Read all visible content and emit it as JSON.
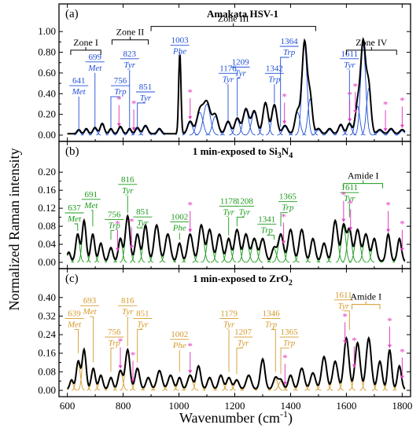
{
  "figure": {
    "ylabel": "Normalized Raman intensity",
    "xlabel": "Wavenumber (cm",
    "xlabel_sup": "-1",
    "xlabel_close": ")"
  },
  "chart_data": [
    {
      "type": "line",
      "panel_label": "(a)",
      "title": "Amakata HSV-1",
      "title_sub": "",
      "title_tail": "",
      "color": "#1f4fd8",
      "xlim": [
        570,
        1830
      ],
      "ylim": [
        0,
        1.1
      ],
      "x_ticks": [
        600,
        800,
        1000,
        1200,
        1400,
        1600,
        1800
      ],
      "y_ticks": [
        0.0,
        0.2,
        0.4,
        0.6,
        0.8,
        1.0
      ],
      "y_tick_labels": [
        "0.00",
        "0.20",
        "0.40",
        "0.60",
        "0.80",
        "1.00"
      ],
      "peaks": [
        {
          "x": 641,
          "y": 0.04,
          "w": 6
        },
        {
          "x": 668,
          "y": 0.05,
          "w": 6
        },
        {
          "x": 699,
          "y": 0.06,
          "w": 7
        },
        {
          "x": 725,
          "y": 0.1,
          "w": 7
        },
        {
          "x": 756,
          "y": 0.05,
          "w": 6
        },
        {
          "x": 790,
          "y": 0.07,
          "w": 7
        },
        {
          "x": 823,
          "y": 0.05,
          "w": 6
        },
        {
          "x": 851,
          "y": 0.06,
          "w": 7
        },
        {
          "x": 880,
          "y": 0.08,
          "w": 8
        },
        {
          "x": 930,
          "y": 0.05,
          "w": 7
        },
        {
          "x": 1003,
          "y": 0.78,
          "w": 4
        },
        {
          "x": 1040,
          "y": 0.12,
          "w": 9
        },
        {
          "x": 1075,
          "y": 0.22,
          "w": 11
        },
        {
          "x": 1100,
          "y": 0.3,
          "w": 12
        },
        {
          "x": 1130,
          "y": 0.18,
          "w": 10
        },
        {
          "x": 1176,
          "y": 0.12,
          "w": 9
        },
        {
          "x": 1209,
          "y": 0.15,
          "w": 9
        },
        {
          "x": 1240,
          "y": 0.24,
          "w": 10
        },
        {
          "x": 1270,
          "y": 0.22,
          "w": 10
        },
        {
          "x": 1310,
          "y": 0.3,
          "w": 9
        },
        {
          "x": 1342,
          "y": 0.28,
          "w": 9
        },
        {
          "x": 1380,
          "y": 0.08,
          "w": 9
        },
        {
          "x": 1425,
          "y": 0.22,
          "w": 9
        },
        {
          "x": 1450,
          "y": 0.88,
          "w": 9
        },
        {
          "x": 1470,
          "y": 0.35,
          "w": 8
        },
        {
          "x": 1500,
          "y": 0.05,
          "w": 8
        },
        {
          "x": 1540,
          "y": 0.05,
          "w": 8
        },
        {
          "x": 1580,
          "y": 0.09,
          "w": 8
        },
        {
          "x": 1611,
          "y": 0.1,
          "w": 8
        },
        {
          "x": 1640,
          "y": 0.28,
          "w": 8
        },
        {
          "x": 1660,
          "y": 0.88,
          "w": 9
        },
        {
          "x": 1680,
          "y": 0.45,
          "w": 8
        },
        {
          "x": 1720,
          "y": 0.04,
          "w": 9
        },
        {
          "x": 1760,
          "y": 0.05,
          "w": 8
        },
        {
          "x": 1800,
          "y": 0.04,
          "w": 8
        }
      ],
      "annotations": [
        {
          "text": "641",
          "sub": "Met",
          "x": 641,
          "y": 0.5,
          "lx": 641,
          "ly": 0.05
        },
        {
          "text": "699",
          "sub": "Met",
          "x": 699,
          "y": 0.73,
          "lx": 699,
          "ly": 0.08
        },
        {
          "text": "823",
          "sub": "Tyr",
          "x": 823,
          "y": 0.76,
          "lx": 823,
          "ly": 0.07
        },
        {
          "text": "756",
          "sub": "Trp",
          "x": 790,
          "y": 0.5,
          "lx": 756,
          "ly": 0.07
        },
        {
          "text": "851",
          "sub": "Tyr",
          "x": 880,
          "y": 0.44,
          "lx": 851,
          "ly": 0.07
        },
        {
          "text": "1003",
          "sub": "Phe",
          "x": 1003,
          "y": 0.89,
          "lx": 1003,
          "ly": 0.8
        },
        {
          "text": "1176",
          "sub": "Tyr",
          "x": 1176,
          "y": 0.62,
          "lx": 1176,
          "ly": 0.14
        },
        {
          "text": "1209",
          "sub": "Tyr",
          "x": 1220,
          "y": 0.68,
          "lx": 1209,
          "ly": 0.18
        },
        {
          "text": "1342",
          "sub": "Trp",
          "x": 1342,
          "y": 0.62,
          "lx": 1342,
          "ly": 0.31
        },
        {
          "text": "1364",
          "sub": "Trp",
          "x": 1395,
          "y": 0.88,
          "lx": 1364,
          "ly": 0.08
        },
        {
          "text": "1611",
          "sub": "Tyr",
          "x": 1611,
          "y": 0.76,
          "lx": 1611,
          "ly": 0.12
        }
      ],
      "asterisks": [
        785,
        838,
        1040,
        1378,
        1612,
        1632,
        1740,
        1800
      ],
      "zones": [
        {
          "label": "Zone I",
          "x1": 612,
          "x2": 720,
          "y": 0.82
        },
        {
          "label": "Zone II",
          "x1": 760,
          "x2": 890,
          "y": 0.92
        },
        {
          "label": "Zone III",
          "x1": 900,
          "x2": 1490,
          "y": 1.05
        },
        {
          "label": "Zone IV",
          "x1": 1600,
          "x2": 1780,
          "y": 0.82
        }
      ]
    },
    {
      "type": "line",
      "panel_label": "(b)",
      "title": "1 min-exposed to Si",
      "title_sub": "3",
      "title_tail": "N",
      "title_sub2": "4",
      "color": "#1a9a1a",
      "xlim": [
        570,
        1830
      ],
      "ylim": [
        0,
        0.23
      ],
      "x_ticks": [
        600,
        800,
        1000,
        1200,
        1400,
        1600,
        1800
      ],
      "y_ticks": [
        0.0,
        0.04,
        0.08,
        0.12,
        0.16,
        0.2
      ],
      "y_tick_labels": [
        "0.00",
        "0.04",
        "0.08",
        "0.12",
        "0.16",
        "0.20"
      ],
      "peaks": [
        {
          "x": 605,
          "y": 0.02,
          "w": 6
        },
        {
          "x": 637,
          "y": 0.06,
          "w": 7
        },
        {
          "x": 660,
          "y": 0.09,
          "w": 7
        },
        {
          "x": 691,
          "y": 0.06,
          "w": 7
        },
        {
          "x": 720,
          "y": 0.04,
          "w": 7
        },
        {
          "x": 756,
          "y": 0.03,
          "w": 7
        },
        {
          "x": 790,
          "y": 0.05,
          "w": 7
        },
        {
          "x": 816,
          "y": 0.1,
          "w": 8
        },
        {
          "x": 851,
          "y": 0.06,
          "w": 8
        },
        {
          "x": 880,
          "y": 0.08,
          "w": 8
        },
        {
          "x": 920,
          "y": 0.08,
          "w": 9
        },
        {
          "x": 960,
          "y": 0.06,
          "w": 9
        },
        {
          "x": 1002,
          "y": 0.04,
          "w": 7
        },
        {
          "x": 1040,
          "y": 0.06,
          "w": 9
        },
        {
          "x": 1080,
          "y": 0.08,
          "w": 9
        },
        {
          "x": 1110,
          "y": 0.07,
          "w": 9
        },
        {
          "x": 1145,
          "y": 0.06,
          "w": 9
        },
        {
          "x": 1178,
          "y": 0.05,
          "w": 8
        },
        {
          "x": 1208,
          "y": 0.07,
          "w": 9
        },
        {
          "x": 1240,
          "y": 0.06,
          "w": 9
        },
        {
          "x": 1270,
          "y": 0.05,
          "w": 9
        },
        {
          "x": 1300,
          "y": 0.05,
          "w": 9
        },
        {
          "x": 1341,
          "y": 0.03,
          "w": 8
        },
        {
          "x": 1365,
          "y": 0.06,
          "w": 9
        },
        {
          "x": 1400,
          "y": 0.07,
          "w": 9
        },
        {
          "x": 1440,
          "y": 0.07,
          "w": 9
        },
        {
          "x": 1480,
          "y": 0.05,
          "w": 8
        },
        {
          "x": 1520,
          "y": 0.04,
          "w": 8
        },
        {
          "x": 1560,
          "y": 0.09,
          "w": 9
        },
        {
          "x": 1590,
          "y": 0.08,
          "w": 8
        },
        {
          "x": 1611,
          "y": 0.07,
          "w": 8
        },
        {
          "x": 1640,
          "y": 0.07,
          "w": 9
        },
        {
          "x": 1670,
          "y": 0.06,
          "w": 9
        },
        {
          "x": 1700,
          "y": 0.05,
          "w": 8
        },
        {
          "x": 1750,
          "y": 0.06,
          "w": 7
        },
        {
          "x": 1790,
          "y": 0.05,
          "w": 7
        }
      ],
      "annotations": [
        {
          "text": "637",
          "sub": "Met",
          "x": 625,
          "y": 0.115,
          "lx": 637,
          "ly": 0.07
        },
        {
          "text": "691",
          "sub": "Met",
          "x": 685,
          "y": 0.145,
          "lx": 691,
          "ly": 0.08
        },
        {
          "text": "816",
          "sub": "Tyr",
          "x": 816,
          "y": 0.178,
          "lx": 816,
          "ly": 0.11
        },
        {
          "text": "756",
          "sub": "Trp",
          "x": 768,
          "y": 0.1,
          "lx": 756,
          "ly": 0.05
        },
        {
          "text": "851",
          "sub": "Tyr",
          "x": 870,
          "y": 0.106,
          "lx": 851,
          "ly": 0.08
        },
        {
          "text": "1002",
          "sub": "Phe",
          "x": 1002,
          "y": 0.095,
          "lx": 1002,
          "ly": 0.05
        },
        {
          "text": "1178",
          "sub": "Tyr",
          "x": 1178,
          "y": 0.13,
          "lx": 1178,
          "ly": 0.06
        },
        {
          "text": "1208",
          "sub": "Tyr",
          "x": 1235,
          "y": 0.13,
          "lx": 1208,
          "ly": 0.08
        },
        {
          "text": "1341",
          "sub": "Trp",
          "x": 1315,
          "y": 0.09,
          "lx": 1341,
          "ly": 0.05
        },
        {
          "text": "1365",
          "sub": "Trp",
          "x": 1390,
          "y": 0.14,
          "lx": 1365,
          "ly": 0.08
        },
        {
          "text": "1611",
          "sub": "Tyr",
          "x": 1611,
          "y": 0.16,
          "lx": 1611,
          "ly": 0.1
        }
      ],
      "asterisks": [
        780,
        830,
        1040,
        1375,
        1590,
        1615,
        1750,
        1800
      ],
      "zones": [
        {
          "label": "Amide I",
          "x1": 1590,
          "x2": 1730,
          "y": 0.175
        }
      ]
    },
    {
      "type": "line",
      "panel_label": "(c)",
      "title": "1 min-exposed to ZrO",
      "title_sub": "2",
      "title_tail": "",
      "color": "#d49a2a",
      "xlim": [
        570,
        1830
      ],
      "ylim": [
        0,
        0.45
      ],
      "x_ticks": [
        600,
        800,
        1000,
        1200,
        1400,
        1600,
        1800
      ],
      "y_ticks": [
        0.0,
        0.08,
        0.16,
        0.24,
        0.32,
        0.4
      ],
      "y_tick_labels": [
        "0.00",
        "0.08",
        "0.16",
        "0.24",
        "0.32",
        "0.40"
      ],
      "peaks": [
        {
          "x": 615,
          "y": 0.04,
          "w": 6
        },
        {
          "x": 639,
          "y": 0.12,
          "w": 7
        },
        {
          "x": 660,
          "y": 0.17,
          "w": 7
        },
        {
          "x": 693,
          "y": 0.09,
          "w": 7
        },
        {
          "x": 720,
          "y": 0.06,
          "w": 7
        },
        {
          "x": 756,
          "y": 0.05,
          "w": 7
        },
        {
          "x": 790,
          "y": 0.08,
          "w": 8
        },
        {
          "x": 816,
          "y": 0.17,
          "w": 8
        },
        {
          "x": 851,
          "y": 0.09,
          "w": 8
        },
        {
          "x": 890,
          "y": 0.05,
          "w": 8
        },
        {
          "x": 930,
          "y": 0.08,
          "w": 9
        },
        {
          "x": 970,
          "y": 0.06,
          "w": 9
        },
        {
          "x": 1002,
          "y": 0.05,
          "w": 7
        },
        {
          "x": 1040,
          "y": 0.06,
          "w": 9
        },
        {
          "x": 1070,
          "y": 0.1,
          "w": 8
        },
        {
          "x": 1110,
          "y": 0.05,
          "w": 8
        },
        {
          "x": 1150,
          "y": 0.06,
          "w": 8
        },
        {
          "x": 1179,
          "y": 0.05,
          "w": 8
        },
        {
          "x": 1207,
          "y": 0.04,
          "w": 8
        },
        {
          "x": 1250,
          "y": 0.06,
          "w": 9
        },
        {
          "x": 1300,
          "y": 0.13,
          "w": 8
        },
        {
          "x": 1346,
          "y": 0.05,
          "w": 8
        },
        {
          "x": 1365,
          "y": 0.04,
          "w": 8
        },
        {
          "x": 1400,
          "y": 0.06,
          "w": 8
        },
        {
          "x": 1440,
          "y": 0.09,
          "w": 9
        },
        {
          "x": 1480,
          "y": 0.07,
          "w": 9
        },
        {
          "x": 1520,
          "y": 0.14,
          "w": 9
        },
        {
          "x": 1560,
          "y": 0.12,
          "w": 9
        },
        {
          "x": 1600,
          "y": 0.22,
          "w": 9
        },
        {
          "x": 1640,
          "y": 0.2,
          "w": 9
        },
        {
          "x": 1680,
          "y": 0.22,
          "w": 9
        },
        {
          "x": 1720,
          "y": 0.12,
          "w": 8
        },
        {
          "x": 1755,
          "y": 0.17,
          "w": 7
        },
        {
          "x": 1790,
          "y": 0.1,
          "w": 7
        }
      ],
      "annotations": [
        {
          "text": "639",
          "sub": "Met",
          "x": 625,
          "y": 0.32,
          "lx": 639,
          "ly": 0.16
        },
        {
          "text": "693",
          "sub": "Met",
          "x": 680,
          "y": 0.375,
          "lx": 693,
          "ly": 0.12
        },
        {
          "text": "816",
          "sub": "Tyr",
          "x": 816,
          "y": 0.375,
          "lx": 816,
          "ly": 0.19
        },
        {
          "text": "756",
          "sub": "Trp",
          "x": 768,
          "y": 0.24,
          "lx": 756,
          "ly": 0.08
        },
        {
          "text": "851",
          "sub": "Tyr",
          "x": 870,
          "y": 0.32,
          "lx": 851,
          "ly": 0.12
        },
        {
          "text": "1002",
          "sub": "Phe",
          "x": 1002,
          "y": 0.23,
          "lx": 1002,
          "ly": 0.08
        },
        {
          "text": "1179",
          "sub": "Tyr",
          "x": 1179,
          "y": 0.32,
          "lx": 1179,
          "ly": 0.08
        },
        {
          "text": "1207",
          "sub": "Tyr",
          "x": 1230,
          "y": 0.24,
          "lx": 1207,
          "ly": 0.07
        },
        {
          "text": "1346",
          "sub": "Trp",
          "x": 1330,
          "y": 0.32,
          "lx": 1346,
          "ly": 0.08
        },
        {
          "text": "1365",
          "sub": "Trp",
          "x": 1395,
          "y": 0.24,
          "lx": 1365,
          "ly": 0.07
        },
        {
          "text": "1611",
          "sub": "Tyr",
          "x": 1590,
          "y": 0.4,
          "lx": 1611,
          "ly": 0.26
        }
      ],
      "asterisks": [
        790,
        835,
        1040,
        1380,
        1595,
        1628,
        1755,
        1800
      ],
      "zones": [
        {
          "label": "Amide I",
          "x1": 1620,
          "x2": 1720,
          "y": 0.37
        }
      ]
    }
  ]
}
